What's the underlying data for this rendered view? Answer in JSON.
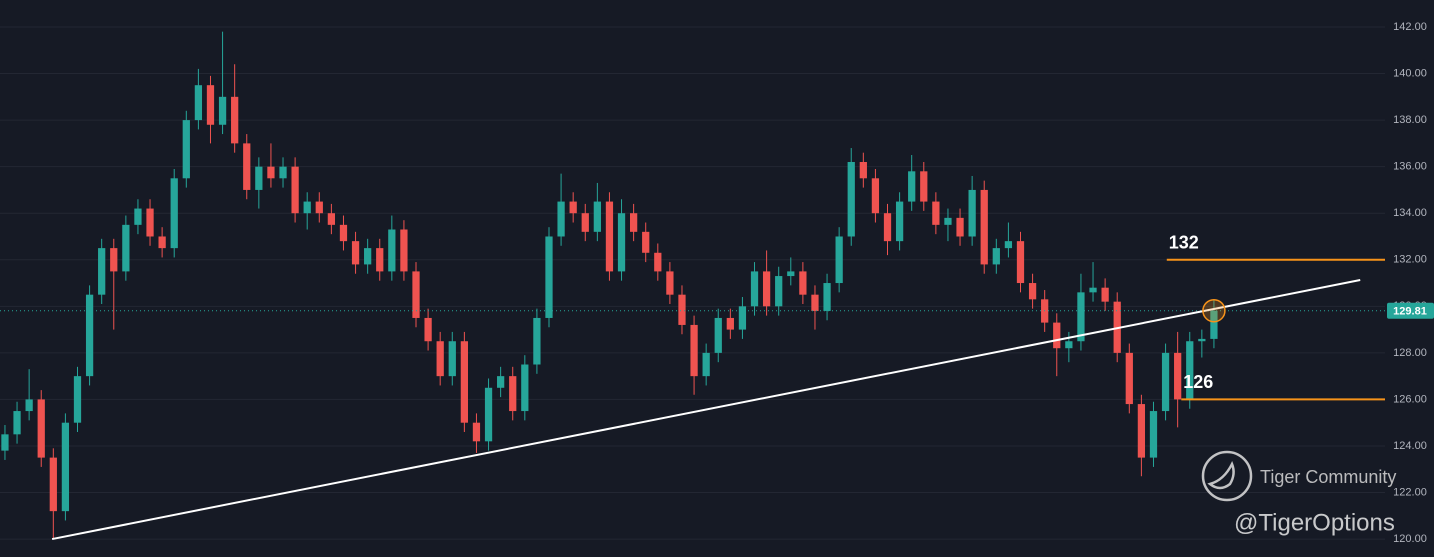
{
  "chart_data": {
    "type": "candlestick",
    "up_color": "#26a69a",
    "down_color": "#ef5350",
    "grid": true,
    "open": [
      123.8,
      124.5,
      125.5,
      126,
      123.5,
      121.2,
      125,
      127,
      130.5,
      132.5,
      131.5,
      133.5,
      134.2,
      133,
      132.5,
      135.5,
      138,
      139.5,
      137.8,
      139,
      137,
      135,
      136,
      135.5,
      136,
      134,
      134.5,
      134,
      133.5,
      132.8,
      131.8,
      132.5,
      131.5,
      133.3,
      131.5,
      129.5,
      128.5,
      127,
      128.5,
      125,
      124.2,
      126.5,
      127,
      125.5,
      127.5,
      129.5,
      133,
      134.5,
      134,
      133.2,
      134.5,
      131.5,
      134,
      133.2,
      132.3,
      131.5,
      130.5,
      129.2,
      127,
      128,
      129.5,
      129,
      130,
      131.5,
      130,
      131.3,
      131.5,
      130.5,
      129.8,
      131,
      133,
      136.2,
      135.5,
      134,
      132.8,
      134.5,
      135.8,
      134.5,
      133.5,
      133.8,
      133,
      135,
      131.8,
      132.5,
      132.8,
      131,
      130.3,
      129.3,
      128.2,
      128.5,
      130.6,
      130.8,
      130.2,
      128,
      125.8,
      123.5,
      125.5,
      128,
      126,
      128.5,
      128.6
    ],
    "high": [
      124.9,
      125.9,
      127.3,
      126.4,
      123.9,
      125.4,
      127.4,
      130.9,
      132.9,
      132.9,
      133.9,
      134.6,
      134.6,
      133.4,
      135.9,
      138.4,
      140.2,
      139.9,
      141.8,
      140.4,
      137.4,
      136.4,
      137.0,
      136.4,
      136.4,
      134.9,
      134.9,
      134.4,
      133.9,
      133.2,
      132.9,
      132.9,
      133.9,
      133.7,
      131.9,
      129.9,
      128.9,
      128.9,
      128.9,
      125.4,
      126.9,
      127.4,
      127.4,
      127.9,
      129.9,
      133.4,
      135.7,
      134.9,
      134.4,
      135.3,
      134.9,
      134.6,
      134.4,
      133.6,
      132.7,
      131.9,
      130.9,
      129.6,
      128.4,
      129.9,
      129.9,
      130.4,
      131.9,
      132.4,
      131.7,
      132.1,
      131.9,
      130.9,
      131.4,
      133.4,
      136.8,
      136.6,
      135.9,
      134.4,
      134.9,
      136.5,
      136.2,
      134.9,
      134.2,
      134.2,
      135.6,
      135.4,
      132.9,
      133.6,
      133.2,
      131.4,
      130.7,
      129.7,
      128.9,
      131.4,
      131.9,
      131.2,
      130.6,
      128.4,
      126.2,
      125.9,
      128.4,
      128.9,
      128.9,
      129.0,
      130.3
    ],
    "low": [
      123.4,
      124.1,
      125.1,
      123.1,
      120.0,
      120.8,
      124.6,
      126.6,
      130.1,
      129.0,
      131.1,
      133.1,
      132.6,
      132.1,
      132.1,
      135.1,
      137.6,
      137.0,
      137.4,
      136.6,
      134.6,
      134.2,
      135.1,
      135.1,
      133.6,
      133.3,
      133.6,
      133.1,
      132.4,
      131.4,
      131.4,
      131.1,
      131.1,
      131.1,
      129.1,
      128.1,
      126.6,
      126.6,
      124.6,
      123.7,
      123.8,
      126.1,
      125.1,
      125.1,
      127.1,
      129.1,
      132.6,
      133.6,
      132.8,
      132.8,
      131.1,
      131.1,
      132.8,
      131.9,
      131.1,
      130.1,
      128.8,
      126.2,
      126.6,
      127.6,
      128.6,
      128.6,
      129.6,
      129.6,
      129.6,
      130.9,
      130.1,
      129.0,
      129.4,
      130.6,
      132.6,
      135.1,
      133.6,
      132.2,
      132.4,
      134.1,
      134.1,
      133.1,
      132.8,
      132.6,
      132.6,
      131.4,
      131.4,
      132.1,
      130.6,
      129.9,
      128.9,
      127.0,
      127.6,
      128.1,
      130.2,
      129.8,
      127.6,
      125.4,
      122.7,
      123.1,
      125.1,
      124.8,
      125.6,
      127.8,
      128.2
    ],
    "close": [
      124.5,
      125.5,
      126,
      123.5,
      121.2,
      125,
      127,
      130.5,
      132.5,
      131.5,
      133.5,
      134.2,
      133,
      132.5,
      135.5,
      138,
      139.5,
      137.8,
      139,
      137,
      135,
      136,
      135.5,
      136,
      134,
      134.5,
      134,
      133.5,
      132.8,
      131.8,
      132.5,
      131.5,
      133.3,
      131.5,
      129.5,
      128.5,
      127,
      128.5,
      125,
      124.2,
      126.5,
      127,
      125.5,
      127.5,
      129.5,
      133,
      134.5,
      134,
      133.2,
      134.5,
      131.5,
      134,
      133.2,
      132.3,
      131.5,
      130.5,
      129.2,
      127,
      128,
      129.5,
      129,
      130,
      131.5,
      130,
      131.3,
      131.5,
      130.5,
      129.8,
      131,
      133,
      136.2,
      135.5,
      134,
      132.8,
      134.5,
      135.8,
      134.5,
      133.5,
      133.8,
      133,
      135,
      131.8,
      132.5,
      132.8,
      131,
      130.3,
      129.3,
      128.2,
      128.5,
      130.6,
      130.8,
      130.2,
      128,
      125.8,
      123.5,
      125.5,
      128,
      126,
      128.5,
      128.6,
      129.81
    ],
    "xlim": [
      -0.41,
      114.15
    ],
    "ylim": [
      119.23,
      143.16
    ],
    "yticks": [
      {
        "value": 120,
        "label": "120.00"
      },
      {
        "value": 122,
        "label": "122.00"
      },
      {
        "value": 124,
        "label": "124.00"
      },
      {
        "value": 126,
        "label": "126.00"
      },
      {
        "value": 128,
        "label": "128.00"
      },
      {
        "value": 130,
        "label": "130.00"
      },
      {
        "value": 132,
        "label": "132.00"
      },
      {
        "value": 134,
        "label": "134.00"
      },
      {
        "value": 136,
        "label": "136.00"
      },
      {
        "value": 138,
        "label": "138.00"
      },
      {
        "value": 140,
        "label": "140.00"
      },
      {
        "value": 142,
        "label": "142.00"
      }
    ],
    "last_price": 129.81,
    "last_price_color": "#26a69a",
    "trendline": {
      "x": [
        3.9,
        112.1
      ],
      "y": [
        120.0,
        131.13
      ],
      "color": "#ffffff"
    },
    "levels": [
      {
        "value": 132,
        "start": 96.1
      },
      {
        "value": 126,
        "start": 97.3
      }
    ],
    "level_color": "#f7931a",
    "watermark": {
      "brand": "Tiger Community",
      "handle": "@TigerOptions"
    }
  }
}
